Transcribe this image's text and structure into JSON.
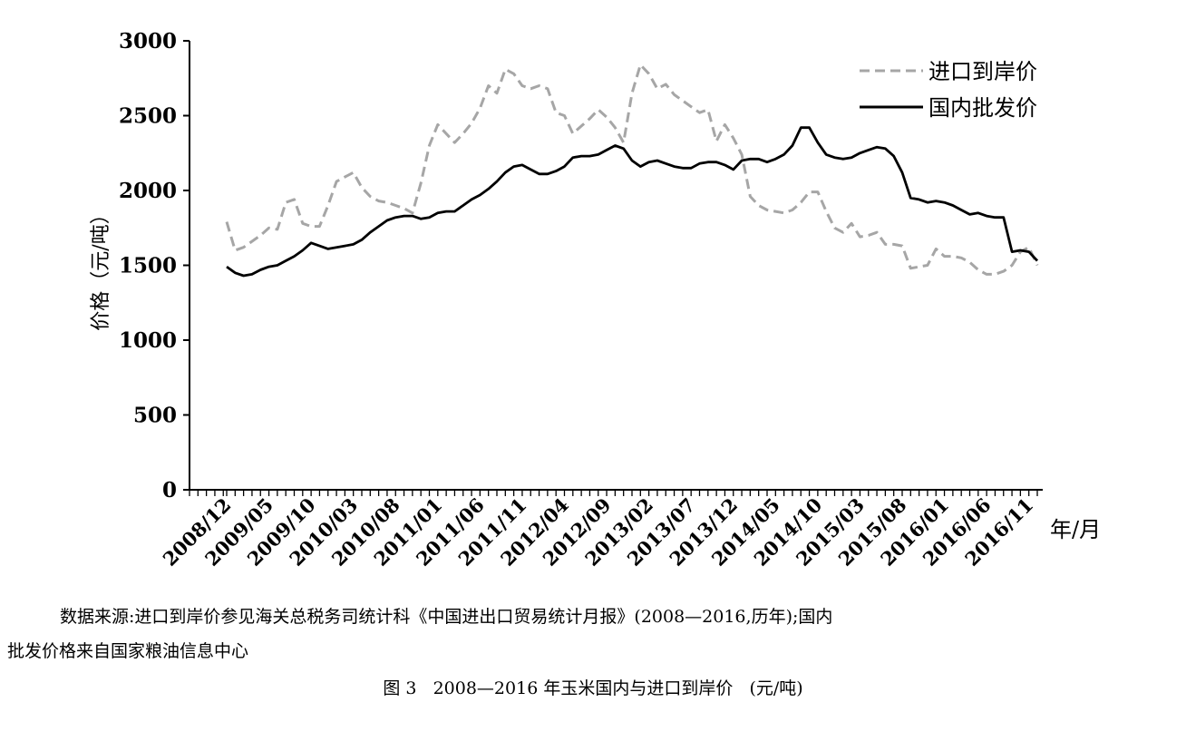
{
  "chart_data": {
    "type": "line",
    "ylabel": "价格（元/吨）",
    "xlabel": "年/月",
    "ylim": [
      0,
      3000
    ],
    "yticks": [
      0,
      500,
      1000,
      1500,
      2000,
      2500,
      3000
    ],
    "x_tick_labels": [
      "2008/12",
      "2009/05",
      "2009/10",
      "2010/03",
      "2010/08",
      "2011/01",
      "2011/06",
      "2011/11",
      "2012/04",
      "2012/09",
      "2013/02",
      "2013/07",
      "2013/12",
      "2014/05",
      "2014/10",
      "2015/03",
      "2015/08",
      "2016/01",
      "2016/06",
      "2016/11"
    ],
    "x_start": "2008/12",
    "x_end": "2016/12",
    "legend_position": "top-right",
    "grid": false,
    "series": [
      {
        "name": "进口到岸价",
        "style": "dashed",
        "color": "#a6a6a6",
        "points": [
          [
            "2008/12",
            1790
          ],
          [
            "2009/01",
            1600
          ],
          [
            "2009/02",
            1620
          ],
          [
            "2009/03",
            1660
          ],
          [
            "2009/04",
            1700
          ],
          [
            "2009/05",
            1750
          ],
          [
            "2009/06",
            1740
          ],
          [
            "2009/07",
            1920
          ],
          [
            "2009/08",
            1940
          ],
          [
            "2009/09",
            1780
          ],
          [
            "2009/10",
            1760
          ],
          [
            "2009/11",
            1760
          ],
          [
            "2009/12",
            1900
          ],
          [
            "2010/01",
            2060
          ],
          [
            "2010/02",
            2090
          ],
          [
            "2010/03",
            2120
          ],
          [
            "2010/04",
            2020
          ],
          [
            "2010/05",
            1960
          ],
          [
            "2010/06",
            1930
          ],
          [
            "2010/07",
            1920
          ],
          [
            "2010/08",
            1900
          ],
          [
            "2010/09",
            1880
          ],
          [
            "2010/10",
            1850
          ],
          [
            "2010/11",
            2050
          ],
          [
            "2010/12",
            2300
          ],
          [
            "2011/01",
            2440
          ],
          [
            "2011/02",
            2380
          ],
          [
            "2011/03",
            2320
          ],
          [
            "2011/04",
            2380
          ],
          [
            "2011/05",
            2450
          ],
          [
            "2011/06",
            2550
          ],
          [
            "2011/07",
            2700
          ],
          [
            "2011/08",
            2650
          ],
          [
            "2011/09",
            2810
          ],
          [
            "2011/10",
            2780
          ],
          [
            "2011/11",
            2700
          ],
          [
            "2011/12",
            2680
          ],
          [
            "2012/01",
            2700
          ],
          [
            "2012/02",
            2680
          ],
          [
            "2012/03",
            2520
          ],
          [
            "2012/04",
            2500
          ],
          [
            "2012/05",
            2380
          ],
          [
            "2012/06",
            2430
          ],
          [
            "2012/07",
            2480
          ],
          [
            "2012/08",
            2540
          ],
          [
            "2012/09",
            2490
          ],
          [
            "2012/10",
            2420
          ],
          [
            "2012/11",
            2320
          ],
          [
            "2012/12",
            2650
          ],
          [
            "2013/01",
            2840
          ],
          [
            "2013/02",
            2780
          ],
          [
            "2013/03",
            2680
          ],
          [
            "2013/04",
            2710
          ],
          [
            "2013/05",
            2640
          ],
          [
            "2013/06",
            2600
          ],
          [
            "2013/07",
            2560
          ],
          [
            "2013/08",
            2520
          ],
          [
            "2013/09",
            2540
          ],
          [
            "2013/10",
            2330
          ],
          [
            "2013/11",
            2440
          ],
          [
            "2013/12",
            2350
          ],
          [
            "2014/01",
            2240
          ],
          [
            "2014/02",
            1960
          ],
          [
            "2014/03",
            1900
          ],
          [
            "2014/04",
            1870
          ],
          [
            "2014/05",
            1860
          ],
          [
            "2014/06",
            1850
          ],
          [
            "2014/07",
            1870
          ],
          [
            "2014/08",
            1920
          ],
          [
            "2014/09",
            1990
          ],
          [
            "2014/10",
            1990
          ],
          [
            "2014/11",
            1860
          ],
          [
            "2014/12",
            1750
          ],
          [
            "2015/01",
            1720
          ],
          [
            "2015/02",
            1780
          ],
          [
            "2015/03",
            1690
          ],
          [
            "2015/04",
            1700
          ],
          [
            "2015/05",
            1720
          ],
          [
            "2015/06",
            1640
          ],
          [
            "2015/07",
            1640
          ],
          [
            "2015/08",
            1630
          ],
          [
            "2015/09",
            1480
          ],
          [
            "2015/10",
            1490
          ],
          [
            "2015/11",
            1500
          ],
          [
            "2015/12",
            1610
          ],
          [
            "2016/01",
            1560
          ],
          [
            "2016/02",
            1560
          ],
          [
            "2016/03",
            1550
          ],
          [
            "2016/04",
            1520
          ],
          [
            "2016/05",
            1470
          ],
          [
            "2016/06",
            1440
          ],
          [
            "2016/07",
            1440
          ],
          [
            "2016/08",
            1460
          ],
          [
            "2016/09",
            1500
          ],
          [
            "2016/10",
            1590
          ],
          [
            "2016/11",
            1620
          ],
          [
            "2016/12",
            1500
          ]
        ]
      },
      {
        "name": "国内批发价",
        "style": "solid",
        "color": "#000000",
        "points": [
          [
            "2008/12",
            1490
          ],
          [
            "2009/01",
            1450
          ],
          [
            "2009/02",
            1430
          ],
          [
            "2009/03",
            1440
          ],
          [
            "2009/04",
            1470
          ],
          [
            "2009/05",
            1490
          ],
          [
            "2009/06",
            1500
          ],
          [
            "2009/07",
            1530
          ],
          [
            "2009/08",
            1560
          ],
          [
            "2009/09",
            1600
          ],
          [
            "2009/10",
            1650
          ],
          [
            "2009/11",
            1630
          ],
          [
            "2009/12",
            1610
          ],
          [
            "2010/01",
            1620
          ],
          [
            "2010/02",
            1630
          ],
          [
            "2010/03",
            1640
          ],
          [
            "2010/04",
            1670
          ],
          [
            "2010/05",
            1720
          ],
          [
            "2010/06",
            1760
          ],
          [
            "2010/07",
            1800
          ],
          [
            "2010/08",
            1820
          ],
          [
            "2010/09",
            1830
          ],
          [
            "2010/10",
            1830
          ],
          [
            "2010/11",
            1810
          ],
          [
            "2010/12",
            1820
          ],
          [
            "2011/01",
            1850
          ],
          [
            "2011/02",
            1860
          ],
          [
            "2011/03",
            1860
          ],
          [
            "2011/04",
            1900
          ],
          [
            "2011/05",
            1940
          ],
          [
            "2011/06",
            1970
          ],
          [
            "2011/07",
            2010
          ],
          [
            "2011/08",
            2060
          ],
          [
            "2011/09",
            2120
          ],
          [
            "2011/10",
            2160
          ],
          [
            "2011/11",
            2170
          ],
          [
            "2011/12",
            2140
          ],
          [
            "2012/01",
            2110
          ],
          [
            "2012/02",
            2110
          ],
          [
            "2012/03",
            2130
          ],
          [
            "2012/04",
            2160
          ],
          [
            "2012/05",
            2220
          ],
          [
            "2012/06",
            2230
          ],
          [
            "2012/07",
            2230
          ],
          [
            "2012/08",
            2240
          ],
          [
            "2012/09",
            2270
          ],
          [
            "2012/10",
            2300
          ],
          [
            "2012/11",
            2280
          ],
          [
            "2012/12",
            2200
          ],
          [
            "2013/01",
            2160
          ],
          [
            "2013/02",
            2190
          ],
          [
            "2013/03",
            2200
          ],
          [
            "2013/04",
            2180
          ],
          [
            "2013/05",
            2160
          ],
          [
            "2013/06",
            2150
          ],
          [
            "2013/07",
            2150
          ],
          [
            "2013/08",
            2180
          ],
          [
            "2013/09",
            2190
          ],
          [
            "2013/10",
            2190
          ],
          [
            "2013/11",
            2170
          ],
          [
            "2013/12",
            2140
          ],
          [
            "2014/01",
            2200
          ],
          [
            "2014/02",
            2210
          ],
          [
            "2014/03",
            2210
          ],
          [
            "2014/04",
            2190
          ],
          [
            "2014/05",
            2210
          ],
          [
            "2014/06",
            2240
          ],
          [
            "2014/07",
            2300
          ],
          [
            "2014/08",
            2420
          ],
          [
            "2014/09",
            2420
          ],
          [
            "2014/10",
            2320
          ],
          [
            "2014/11",
            2240
          ],
          [
            "2014/12",
            2220
          ],
          [
            "2015/01",
            2210
          ],
          [
            "2015/02",
            2220
          ],
          [
            "2015/03",
            2250
          ],
          [
            "2015/04",
            2270
          ],
          [
            "2015/05",
            2290
          ],
          [
            "2015/06",
            2280
          ],
          [
            "2015/07",
            2230
          ],
          [
            "2015/08",
            2120
          ],
          [
            "2015/09",
            1950
          ],
          [
            "2015/10",
            1940
          ],
          [
            "2015/11",
            1920
          ],
          [
            "2015/12",
            1930
          ],
          [
            "2016/01",
            1920
          ],
          [
            "2016/02",
            1900
          ],
          [
            "2016/03",
            1870
          ],
          [
            "2016/04",
            1840
          ],
          [
            "2016/05",
            1850
          ],
          [
            "2016/06",
            1830
          ],
          [
            "2016/07",
            1820
          ],
          [
            "2016/08",
            1820
          ],
          [
            "2016/09",
            1590
          ],
          [
            "2016/10",
            1600
          ],
          [
            "2016/11",
            1590
          ],
          [
            "2016/12",
            1530
          ]
        ]
      }
    ]
  },
  "source_note": {
    "line1": "数据来源:进口到岸价参见海关总税务司统计科《中国进出口贸易统计月报》(2008—2016,历年);国内",
    "line2": "批发价格来自国家粮油信息中心"
  },
  "caption": "图 3   2008—2016 年玉米国内与进口到岸价   (元/吨)"
}
